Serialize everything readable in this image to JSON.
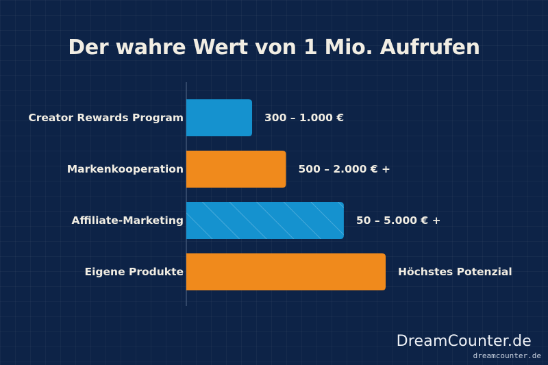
{
  "chart_data": {
    "type": "bar",
    "orientation": "horizontal",
    "title": "Der wahre Wert von 1 Mio. Aufrufen",
    "categories": [
      "Creator Rewards Program",
      "Markenkooperation",
      "Affiliate-Marketing",
      "Eigene Produkte"
    ],
    "values": [
      3.3,
      5,
      7.9,
      10
    ],
    "value_labels": [
      "300 – 1.000 €",
      "500 – 2.000 € +",
      "50 – 5.000 € +",
      "Höchstes Potenzial"
    ],
    "colors": [
      "#1592cf",
      "#f08a1c",
      "#1592cf",
      "#f08a1c"
    ],
    "patterns": [
      "solid",
      "solid",
      "diagonal-hatch",
      "solid"
    ],
    "xlim": [
      0,
      10
    ],
    "grid": false,
    "legend": "none"
  },
  "branding": {
    "main": "DreamCounter.de",
    "small": "dreamcounter.de"
  }
}
